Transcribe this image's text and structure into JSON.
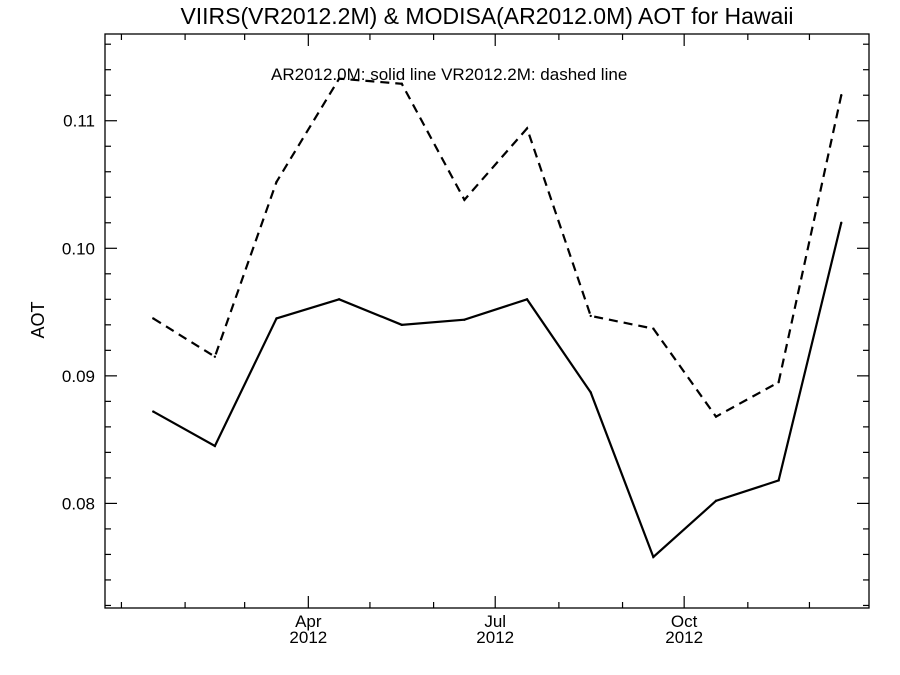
{
  "chart_data": {
    "type": "line",
    "title": "VIIRS(VR2012.2M) & MODISA(AR2012.0M)  AOT for Hawaii",
    "annotation": "AR2012.0M: solid line   VR2012.2M: dashed line",
    "xlabel": "",
    "ylabel": "AOT",
    "x": [
      "2012-01",
      "2012-02",
      "2012-03",
      "2012-04",
      "2012-05",
      "2012-06",
      "2012-07",
      "2012-08",
      "2012-09",
      "2012-10",
      "2012-11",
      "2012-12"
    ],
    "xlim": [
      "2011-12-24",
      "2012-12-30"
    ],
    "ylim": [
      0.0718,
      0.1168
    ],
    "yticks": [
      0.08,
      0.09,
      0.1,
      0.11
    ],
    "ytick_labels": [
      "0.08",
      "0.09",
      "0.10",
      "0.11"
    ],
    "xtick_labels": [
      {
        "month": "Apr",
        "year": "2012"
      },
      {
        "month": "Jul",
        "year": "2012"
      },
      {
        "month": "Oct",
        "year": "2012"
      }
    ],
    "grid": false,
    "series": [
      {
        "style": "solid",
        "values": [
          0.0872,
          0.0845,
          0.0945,
          0.096,
          0.094,
          0.0944,
          0.096,
          0.0887,
          0.0758,
          0.0802,
          0.0818,
          0.102
        ]
      },
      {
        "style": "dashed",
        "values": [
          0.0945,
          0.0915,
          0.1052,
          0.1133,
          0.1129,
          0.1038,
          0.1094,
          0.0947,
          0.0937,
          0.0868,
          0.0895,
          0.112
        ]
      }
    ]
  }
}
